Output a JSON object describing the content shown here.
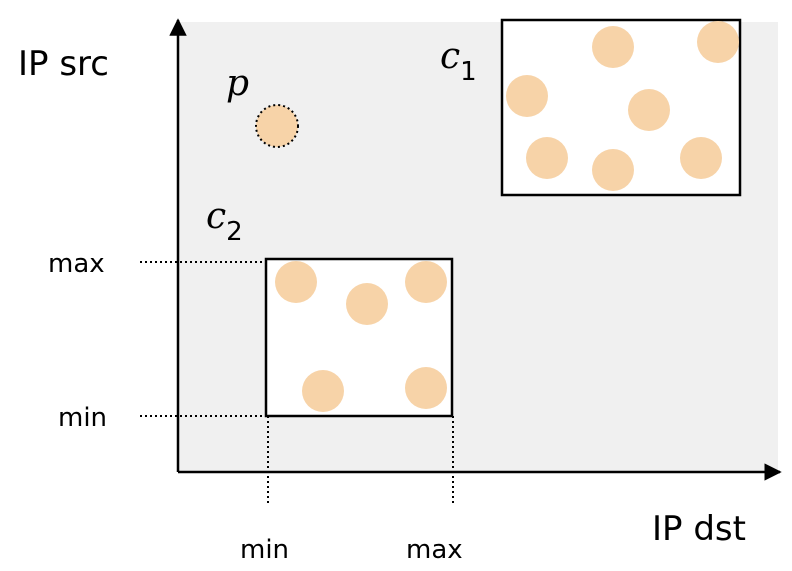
{
  "axes": {
    "y_label": "IP src",
    "x_label": "IP dst"
  },
  "ticks": {
    "y_max": "max",
    "y_min": "min",
    "x_min": "min",
    "x_max": "max"
  },
  "labels": {
    "point": "p",
    "cluster1_var": "c",
    "cluster1_sub": "1",
    "cluster2_var": "c",
    "cluster2_sub": "2"
  },
  "colors": {
    "plot_bg": "#f0f0f0",
    "dot": "#f7d3a8",
    "box_fill": "#ffffff",
    "stroke": "#000000"
  }
}
